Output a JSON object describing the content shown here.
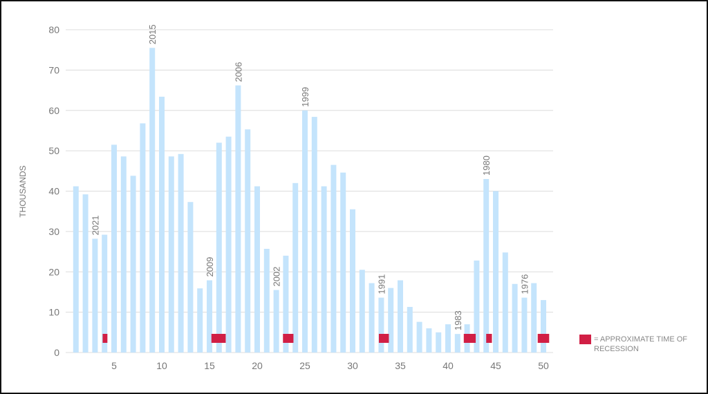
{
  "chart_data": {
    "type": "bar",
    "title": "",
    "xlabel": "",
    "ylabel": "THOUSANDS",
    "ylim": [
      0,
      80
    ],
    "yticks": [
      0,
      10,
      20,
      30,
      40,
      50,
      60,
      70,
      80
    ],
    "xticks": [
      5,
      10,
      15,
      20,
      25,
      30,
      35,
      40,
      45,
      50
    ],
    "grid": true,
    "x": [
      1,
      2,
      3,
      4,
      5,
      6,
      7,
      8,
      9,
      10,
      11,
      12,
      13,
      14,
      15,
      16,
      17,
      18,
      19,
      20,
      21,
      22,
      23,
      24,
      25,
      26,
      27,
      28,
      29,
      30,
      31,
      32,
      33,
      34,
      35,
      36,
      37,
      38,
      39,
      40,
      41,
      42,
      43,
      44,
      45,
      46,
      47,
      48,
      49,
      50
    ],
    "values": [
      41.2,
      39.2,
      28.2,
      29.2,
      51.5,
      48.6,
      43.8,
      56.8,
      75.5,
      63.4,
      48.6,
      49.2,
      37.3,
      15.9,
      17.9,
      52.0,
      53.5,
      66.2,
      55.3,
      41.2,
      25.7,
      15.5,
      24.0,
      42.0,
      60.0,
      58.4,
      41.2,
      46.5,
      44.6,
      35.5,
      20.5,
      17.2,
      13.6,
      16.0,
      17.9,
      11.3,
      7.6,
      6.0,
      5.0,
      7.0,
      4.6,
      7.0,
      22.8,
      43.0,
      40.0,
      24.8,
      17.0,
      13.6,
      17.2,
      13.0
    ],
    "bar_color": "#c4e4fc",
    "annotations": [
      {
        "x": 3,
        "label": "2021"
      },
      {
        "x": 9,
        "label": "2015"
      },
      {
        "x": 15,
        "label": "2009"
      },
      {
        "x": 18,
        "label": "2006"
      },
      {
        "x": 22,
        "label": "2002"
      },
      {
        "x": 25,
        "label": "1999"
      },
      {
        "x": 33,
        "label": "1991"
      },
      {
        "x": 41,
        "label": "1983"
      },
      {
        "x": 44,
        "label": "1980"
      },
      {
        "x": 48,
        "label": "1976"
      }
    ],
    "recessions": [
      {
        "start": 3.8,
        "end": 4.3
      },
      {
        "start": 15.2,
        "end": 16.7
      },
      {
        "start": 22.7,
        "end": 23.8
      },
      {
        "start": 32.75,
        "end": 33.8
      },
      {
        "start": 41.65,
        "end": 42.9
      },
      {
        "start": 44.0,
        "end": 44.6
      },
      {
        "start": 49.4,
        "end": 50.6
      }
    ],
    "recession_color": "#d11f45",
    "legend": {
      "label": "= APPROXIMATE TIME OF RECESSION",
      "placement": "bottom-right"
    }
  }
}
